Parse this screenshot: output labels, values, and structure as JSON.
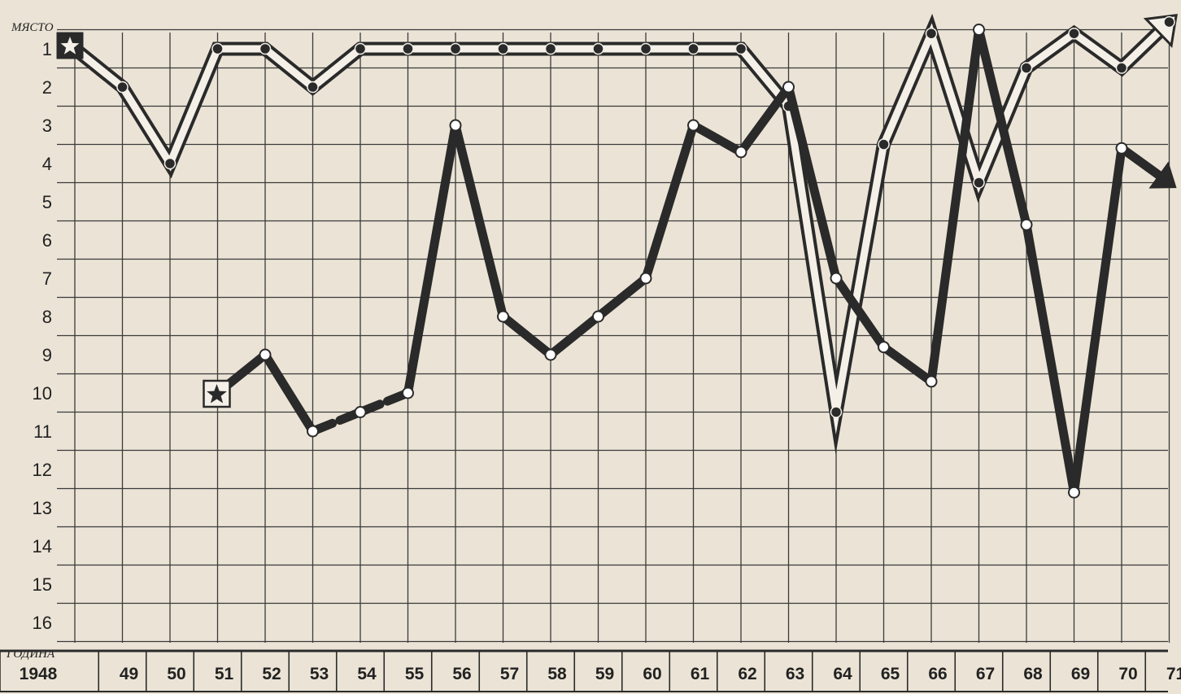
{
  "chart_data": {
    "type": "line",
    "ylabel": "МЯСТО",
    "xlabel": "ГОДИНА",
    "ylim": [
      1,
      16
    ],
    "y_inverted": true,
    "y_ticks": [
      "1",
      "2",
      "3",
      "4",
      "5",
      "6",
      "7",
      "8",
      "9",
      "10",
      "11",
      "12",
      "13",
      "14",
      "15",
      "16"
    ],
    "categories": [
      "1948",
      "49",
      "50",
      "51",
      "52",
      "53",
      "54",
      "55",
      "56",
      "57",
      "58",
      "59",
      "60",
      "61",
      "62",
      "63",
      "64",
      "65",
      "66",
      "67",
      "68",
      "69",
      "70",
      "71"
    ],
    "grid": true,
    "series": [
      {
        "style": "outlined",
        "marker": "star-in-square",
        "values": [
          1,
          2,
          4,
          1,
          1,
          2,
          1,
          1,
          1,
          1,
          1,
          1,
          1,
          1,
          1,
          2.5,
          10.5,
          3.5,
          0.6,
          4.5,
          1.5,
          0.6,
          1.5,
          0.3
        ],
        "end": "arrow"
      },
      {
        "style": "solid",
        "marker": "star-in-square",
        "values": [
          null,
          null,
          null,
          10,
          9,
          11,
          10.5,
          10,
          3,
          8,
          9,
          8,
          7,
          3,
          3.7,
          2,
          7,
          8.8,
          9.7,
          0.5,
          5.6,
          12.6,
          3.6,
          4.5
        ],
        "dashed_segment": [
          "53",
          "55"
        ],
        "end": "arrow"
      }
    ],
    "colors": {
      "paper": "#ebe4d6",
      "grid": "#3a3a3a",
      "ink": "#2a2a2a",
      "outline_fill": "#f4f0e8"
    }
  }
}
